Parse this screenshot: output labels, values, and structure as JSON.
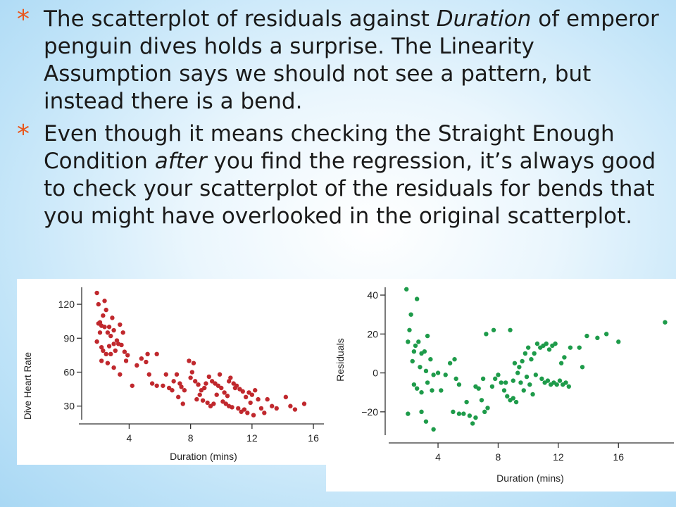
{
  "bullets": [
    {
      "segments": [
        {
          "text": "The scatterplot of residuals against ",
          "italic": false
        },
        {
          "text": "Duration",
          "italic": true
        },
        {
          "text": " of emperor penguin dives holds a surprise.  The Linearity Assumption says we should not see a pattern, but instead there is a bend.",
          "italic": false
        }
      ]
    },
    {
      "segments": [
        {
          "text": "Even though it means checking the Straight Enough Condition ",
          "italic": false
        },
        {
          "text": "after",
          "italic": true
        },
        {
          "text": " you find the regression, it’s always good to check your scatterplot of the residuals for bends that you might have overlooked in the original scatterplot.",
          "italic": false
        }
      ]
    }
  ],
  "bullet_color": "#e9561b",
  "chart_data": [
    {
      "type": "scatter",
      "xlabel": "Duration (mins)",
      "ylabel": "Dive Heart Rate",
      "xticks": [
        4,
        8,
        12,
        16
      ],
      "yticks": [
        30,
        60,
        90,
        120
      ],
      "xlim": [
        1,
        16.5
      ],
      "ylim": [
        18,
        135
      ],
      "color": "#c0282d",
      "points": [
        [
          1.9,
          130
        ],
        [
          2.0,
          120
        ],
        [
          2.1,
          104
        ],
        [
          2.0,
          103
        ],
        [
          2.2,
          101
        ],
        [
          1.9,
          87
        ],
        [
          2.1,
          95
        ],
        [
          2.3,
          110
        ],
        [
          2.4,
          123
        ],
        [
          2.4,
          100
        ],
        [
          2.5,
          115
        ],
        [
          2.6,
          95
        ],
        [
          2.2,
          82
        ],
        [
          2.7,
          100
        ],
        [
          2.8,
          92
        ],
        [
          2.9,
          108
        ],
        [
          3.0,
          85
        ],
        [
          3.0,
          97
        ],
        [
          3.2,
          88
        ],
        [
          3.4,
          102
        ],
        [
          3.6,
          95
        ],
        [
          2.3,
          79
        ],
        [
          2.5,
          76
        ],
        [
          2.7,
          83
        ],
        [
          2.8,
          76
        ],
        [
          3.1,
          79
        ],
        [
          3.3,
          85
        ],
        [
          3.5,
          84
        ],
        [
          3.7,
          78
        ],
        [
          3.9,
          75
        ],
        [
          2.2,
          70
        ],
        [
          2.6,
          68
        ],
        [
          3.0,
          64
        ],
        [
          3.4,
          58
        ],
        [
          3.8,
          70
        ],
        [
          4.2,
          48
        ],
        [
          4.5,
          66
        ],
        [
          4.8,
          72
        ],
        [
          5.2,
          76
        ],
        [
          5.8,
          76
        ],
        [
          5.3,
          58
        ],
        [
          5.5,
          50
        ],
        [
          5.8,
          48
        ],
        [
          6.2,
          48
        ],
        [
          6.6,
          46
        ],
        [
          6.9,
          52
        ],
        [
          7.1,
          58
        ],
        [
          7.3,
          50
        ],
        [
          7.6,
          44
        ],
        [
          5.1,
          69
        ],
        [
          6.4,
          58
        ],
        [
          6.8,
          44
        ],
        [
          7.2,
          38
        ],
        [
          7.5,
          32
        ],
        [
          7.9,
          70
        ],
        [
          8.2,
          68
        ],
        [
          8.0,
          55
        ],
        [
          8.3,
          52
        ],
        [
          8.5,
          49
        ],
        [
          8.7,
          44
        ],
        [
          8.9,
          46
        ],
        [
          9.0,
          50
        ],
        [
          8.4,
          36
        ],
        [
          8.6,
          40
        ],
        [
          8.8,
          35
        ],
        [
          9.1,
          33
        ],
        [
          9.3,
          30
        ],
        [
          9.5,
          32
        ],
        [
          9.7,
          40
        ],
        [
          9.2,
          56
        ],
        [
          9.4,
          52
        ],
        [
          9.6,
          50
        ],
        [
          9.8,
          48
        ],
        [
          10.0,
          46
        ],
        [
          10.2,
          42
        ],
        [
          10.4,
          39
        ],
        [
          10.1,
          34
        ],
        [
          10.3,
          32
        ],
        [
          10.5,
          30
        ],
        [
          10.7,
          29
        ],
        [
          10.6,
          55
        ],
        [
          10.8,
          50
        ],
        [
          11.0,
          48
        ],
        [
          11.2,
          45
        ],
        [
          11.4,
          43
        ],
        [
          11.6,
          38
        ],
        [
          11.1,
          28
        ],
        [
          11.3,
          25
        ],
        [
          11.5,
          27
        ],
        [
          11.7,
          24
        ],
        [
          9.9,
          58
        ],
        [
          10.9,
          46
        ],
        [
          11.8,
          42
        ],
        [
          12.0,
          40
        ],
        [
          12.2,
          44
        ],
        [
          12.4,
          36
        ],
        [
          12.6,
          28
        ],
        [
          12.8,
          24
        ],
        [
          12.1,
          22
        ],
        [
          13.0,
          36
        ],
        [
          13.3,
          30
        ],
        [
          13.6,
          28
        ],
        [
          14.2,
          38
        ],
        [
          14.5,
          30
        ],
        [
          14.8,
          27
        ],
        [
          15.4,
          32
        ],
        [
          7.4,
          47
        ],
        [
          8.1,
          60
        ],
        [
          10.5,
          52
        ],
        [
          11.9,
          33
        ]
      ]
    },
    {
      "type": "scatter",
      "xlabel": "Duration (mins)",
      "ylabel": "Residuals",
      "xticks": [
        4,
        8,
        12,
        16
      ],
      "yticks": [
        -20,
        0,
        20,
        40
      ],
      "xlim": [
        1,
        19.5
      ],
      "ylim": [
        -32,
        44
      ],
      "color": "#1e9b4a",
      "points": [
        [
          1.9,
          43
        ],
        [
          2.2,
          30
        ],
        [
          2.6,
          38
        ],
        [
          2.1,
          22
        ],
        [
          2.0,
          16
        ],
        [
          2.4,
          11
        ],
        [
          2.5,
          14
        ],
        [
          2.7,
          16
        ],
        [
          2.3,
          6
        ],
        [
          2.9,
          10
        ],
        [
          3.1,
          11
        ],
        [
          3.3,
          19
        ],
        [
          2.8,
          3
        ],
        [
          3.2,
          1
        ],
        [
          3.5,
          7
        ],
        [
          3.7,
          -1
        ],
        [
          2.4,
          -6
        ],
        [
          2.6,
          -8
        ],
        [
          2.9,
          -10
        ],
        [
          3.3,
          -5
        ],
        [
          3.6,
          -9
        ],
        [
          4.0,
          0
        ],
        [
          4.2,
          -9
        ],
        [
          4.5,
          -1
        ],
        [
          4.8,
          5
        ],
        [
          5.1,
          7
        ],
        [
          5.2,
          -3
        ],
        [
          5.4,
          -6
        ],
        [
          2.0,
          -21
        ],
        [
          2.9,
          -20
        ],
        [
          3.2,
          -25
        ],
        [
          3.7,
          -29
        ],
        [
          5.0,
          -20
        ],
        [
          5.4,
          -21
        ],
        [
          5.7,
          -21
        ],
        [
          5.9,
          -15
        ],
        [
          6.1,
          -22
        ],
        [
          6.3,
          -26
        ],
        [
          6.5,
          -23
        ],
        [
          6.7,
          -8
        ],
        [
          6.9,
          -14
        ],
        [
          7.1,
          -20
        ],
        [
          7.3,
          -18
        ],
        [
          7.6,
          -7
        ],
        [
          7.8,
          -3
        ],
        [
          8.0,
          -1
        ],
        [
          8.2,
          -5
        ],
        [
          8.4,
          -9
        ],
        [
          8.6,
          -12
        ],
        [
          8.8,
          -14
        ],
        [
          9.0,
          -13
        ],
        [
          9.2,
          -15
        ],
        [
          9.0,
          -4
        ],
        [
          9.3,
          0
        ],
        [
          9.5,
          -5
        ],
        [
          9.7,
          -9
        ],
        [
          9.9,
          -2
        ],
        [
          10.1,
          -6
        ],
        [
          10.3,
          -11
        ],
        [
          10.5,
          -1
        ],
        [
          9.1,
          5
        ],
        [
          9.4,
          3
        ],
        [
          9.6,
          6
        ],
        [
          9.8,
          10
        ],
        [
          10.0,
          13
        ],
        [
          10.2,
          7
        ],
        [
          10.4,
          10
        ],
        [
          10.6,
          15
        ],
        [
          10.8,
          13
        ],
        [
          11.0,
          14
        ],
        [
          11.2,
          15
        ],
        [
          11.4,
          12
        ],
        [
          11.6,
          14
        ],
        [
          11.8,
          15
        ],
        [
          10.9,
          -3
        ],
        [
          11.1,
          -5
        ],
        [
          11.3,
          -4
        ],
        [
          11.5,
          -6
        ],
        [
          11.7,
          -5
        ],
        [
          11.9,
          -6
        ],
        [
          12.1,
          -4
        ],
        [
          12.3,
          -6
        ],
        [
          12.5,
          -5
        ],
        [
          12.7,
          -7
        ],
        [
          12.2,
          5
        ],
        [
          12.4,
          8
        ],
        [
          12.8,
          13
        ],
        [
          13.4,
          13
        ],
        [
          13.6,
          3
        ],
        [
          13.9,
          19
        ],
        [
          14.6,
          18
        ],
        [
          15.2,
          20
        ],
        [
          16.0,
          16
        ],
        [
          19.1,
          26
        ],
        [
          7.2,
          20
        ],
        [
          7.7,
          22
        ],
        [
          8.8,
          22
        ],
        [
          6.5,
          -7
        ],
        [
          7.0,
          -3
        ],
        [
          8.5,
          -5
        ]
      ]
    }
  ]
}
